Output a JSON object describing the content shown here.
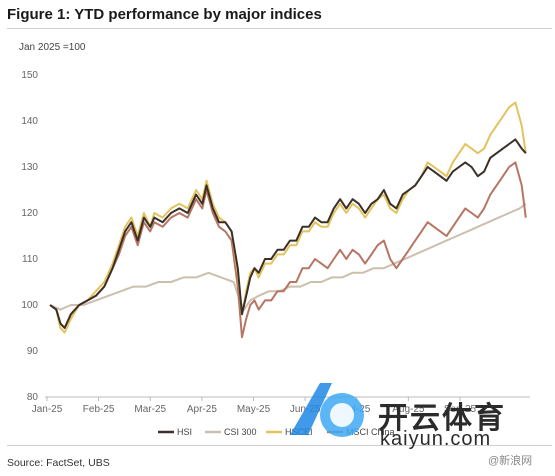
{
  "title": "Figure 1: YTD performance by major indices",
  "ylabel": "Jan 2025 =100",
  "source": "Source: FactSet, UBS",
  "watermark": {
    "brand": "开云体育",
    "domain": "kaiyun.com",
    "tag": "@新浪网"
  },
  "chart_data": {
    "type": "line",
    "x_ticks": [
      "Jan-25",
      "Feb-25",
      "Mar-25",
      "Apr-25",
      "May-25",
      "Jun-25",
      "Jul-25",
      "Aug-25",
      "Sep-25"
    ],
    "y_ticks": [
      80,
      90,
      100,
      110,
      120,
      130,
      140,
      150
    ],
    "ylim": [
      80,
      150
    ],
    "grid": false,
    "legend_position": "bottom",
    "series": [
      {
        "name": "HSI",
        "color": "#3b3028",
        "points": [
          [
            0,
            100
          ],
          [
            0.3,
            99
          ],
          [
            0.5,
            96
          ],
          [
            0.7,
            95
          ],
          [
            1,
            98
          ],
          [
            1.4,
            100
          ],
          [
            1.8,
            101
          ],
          [
            2.2,
            102
          ],
          [
            2.6,
            104
          ],
          [
            3,
            108
          ],
          [
            3.3,
            112
          ],
          [
            3.6,
            116
          ],
          [
            3.9,
            118
          ],
          [
            4.2,
            114
          ],
          [
            4.5,
            119
          ],
          [
            4.8,
            117
          ],
          [
            5,
            119
          ],
          [
            5.4,
            118
          ],
          [
            5.8,
            120
          ],
          [
            6.2,
            121
          ],
          [
            6.6,
            120
          ],
          [
            7,
            124
          ],
          [
            7.3,
            122
          ],
          [
            7.5,
            126
          ],
          [
            7.8,
            121
          ],
          [
            8.1,
            118
          ],
          [
            8.4,
            118
          ],
          [
            8.7,
            116
          ],
          [
            9,
            108
          ],
          [
            9.2,
            98
          ],
          [
            9.4,
            102
          ],
          [
            9.6,
            106
          ],
          [
            9.8,
            108
          ],
          [
            10,
            107
          ],
          [
            10.3,
            110
          ],
          [
            10.6,
            110
          ],
          [
            10.9,
            112
          ],
          [
            11.2,
            112
          ],
          [
            11.5,
            114
          ],
          [
            11.8,
            114
          ],
          [
            12.1,
            117
          ],
          [
            12.4,
            117
          ],
          [
            12.7,
            119
          ],
          [
            13,
            118
          ],
          [
            13.3,
            118
          ],
          [
            13.6,
            121
          ],
          [
            13.9,
            123
          ],
          [
            14.2,
            121
          ],
          [
            14.5,
            123
          ],
          [
            14.8,
            122
          ],
          [
            15.1,
            120
          ],
          [
            15.4,
            122
          ],
          [
            15.7,
            123
          ],
          [
            16,
            125
          ],
          [
            16.3,
            122
          ],
          [
            16.6,
            121
          ],
          [
            16.9,
            124
          ],
          [
            17.2,
            125
          ],
          [
            17.5,
            126
          ],
          [
            17.8,
            128
          ],
          [
            18.1,
            130
          ],
          [
            18.4,
            129
          ],
          [
            18.7,
            128
          ],
          [
            19,
            127
          ],
          [
            19.3,
            129
          ],
          [
            19.6,
            130
          ],
          [
            19.9,
            131
          ],
          [
            20.2,
            130
          ],
          [
            20.5,
            128
          ],
          [
            20.8,
            129
          ],
          [
            21.1,
            132
          ],
          [
            21.4,
            133
          ],
          [
            21.7,
            134
          ],
          [
            22,
            135
          ],
          [
            22.3,
            136
          ],
          [
            22.6,
            134
          ],
          [
            22.8,
            133
          ]
        ]
      },
      {
        "name": "CSI 300",
        "color": "#cdbfae",
        "points": [
          [
            0,
            100
          ],
          [
            0.5,
            99
          ],
          [
            1,
            100
          ],
          [
            1.6,
            100
          ],
          [
            2.2,
            101
          ],
          [
            2.8,
            102
          ],
          [
            3.4,
            103
          ],
          [
            4,
            104
          ],
          [
            4.6,
            104
          ],
          [
            5.2,
            105
          ],
          [
            5.8,
            105
          ],
          [
            6.4,
            106
          ],
          [
            7,
            106
          ],
          [
            7.6,
            107
          ],
          [
            8.2,
            106
          ],
          [
            8.8,
            105
          ],
          [
            9.1,
            101
          ],
          [
            9.3,
            99
          ],
          [
            9.6,
            101
          ],
          [
            10,
            102
          ],
          [
            10.5,
            103
          ],
          [
            11,
            103
          ],
          [
            11.5,
            104
          ],
          [
            12,
            104
          ],
          [
            12.5,
            105
          ],
          [
            13,
            105
          ],
          [
            13.5,
            106
          ],
          [
            14,
            106
          ],
          [
            14.5,
            107
          ],
          [
            15,
            107
          ],
          [
            15.5,
            108
          ],
          [
            16,
            108
          ],
          [
            16.5,
            109
          ],
          [
            17,
            110
          ],
          [
            17.5,
            111
          ],
          [
            18,
            112
          ],
          [
            18.5,
            113
          ],
          [
            19,
            114
          ],
          [
            19.5,
            115
          ],
          [
            20,
            116
          ],
          [
            20.5,
            117
          ],
          [
            21,
            118
          ],
          [
            21.5,
            119
          ],
          [
            22,
            120
          ],
          [
            22.5,
            121
          ],
          [
            22.8,
            122
          ]
        ]
      },
      {
        "name": "HSCEI",
        "color": "#e3c35e",
        "points": [
          [
            0,
            100
          ],
          [
            0.3,
            99
          ],
          [
            0.5,
            95
          ],
          [
            0.7,
            94
          ],
          [
            1,
            97
          ],
          [
            1.4,
            100
          ],
          [
            1.8,
            101
          ],
          [
            2.2,
            103
          ],
          [
            2.6,
            105
          ],
          [
            3,
            109
          ],
          [
            3.3,
            113
          ],
          [
            3.6,
            117
          ],
          [
            3.9,
            119
          ],
          [
            4.2,
            115
          ],
          [
            4.5,
            120
          ],
          [
            4.8,
            117
          ],
          [
            5,
            120
          ],
          [
            5.4,
            119
          ],
          [
            5.8,
            121
          ],
          [
            6.2,
            122
          ],
          [
            6.6,
            121
          ],
          [
            7,
            125
          ],
          [
            7.3,
            123
          ],
          [
            7.5,
            127
          ],
          [
            7.8,
            122
          ],
          [
            8.1,
            119
          ],
          [
            8.4,
            118
          ],
          [
            8.7,
            116
          ],
          [
            9,
            107
          ],
          [
            9.2,
            98
          ],
          [
            9.4,
            103
          ],
          [
            9.6,
            107
          ],
          [
            9.8,
            108
          ],
          [
            10,
            106
          ],
          [
            10.3,
            109
          ],
          [
            10.6,
            109
          ],
          [
            10.9,
            111
          ],
          [
            11.2,
            111
          ],
          [
            11.5,
            113
          ],
          [
            11.8,
            113
          ],
          [
            12.1,
            116
          ],
          [
            12.4,
            116
          ],
          [
            12.7,
            118
          ],
          [
            13,
            117
          ],
          [
            13.3,
            117
          ],
          [
            13.6,
            120
          ],
          [
            13.9,
            122
          ],
          [
            14.2,
            120
          ],
          [
            14.5,
            122
          ],
          [
            14.8,
            121
          ],
          [
            15.1,
            119
          ],
          [
            15.4,
            121
          ],
          [
            15.7,
            123
          ],
          [
            16,
            124
          ],
          [
            16.3,
            121
          ],
          [
            16.6,
            120
          ],
          [
            16.9,
            123
          ],
          [
            17.2,
            125
          ],
          [
            17.5,
            126
          ],
          [
            17.8,
            128
          ],
          [
            18.1,
            131
          ],
          [
            18.4,
            130
          ],
          [
            18.7,
            129
          ],
          [
            19,
            128
          ],
          [
            19.3,
            131
          ],
          [
            19.6,
            133
          ],
          [
            19.9,
            135
          ],
          [
            20.2,
            134
          ],
          [
            20.5,
            133
          ],
          [
            20.8,
            134
          ],
          [
            21.1,
            137
          ],
          [
            21.4,
            139
          ],
          [
            21.7,
            141
          ],
          [
            22,
            143
          ],
          [
            22.3,
            144
          ],
          [
            22.6,
            139
          ],
          [
            22.8,
            133
          ]
        ]
      },
      {
        "name": "MSCI China",
        "color": "#b77563",
        "points": [
          [
            0,
            100
          ],
          [
            0.3,
            99
          ],
          [
            0.5,
            96
          ],
          [
            0.7,
            95
          ],
          [
            1,
            98
          ],
          [
            1.4,
            100
          ],
          [
            1.8,
            101
          ],
          [
            2.2,
            102
          ],
          [
            2.6,
            104
          ],
          [
            3,
            108
          ],
          [
            3.3,
            111
          ],
          [
            3.6,
            115
          ],
          [
            3.9,
            117
          ],
          [
            4.2,
            113
          ],
          [
            4.5,
            118
          ],
          [
            4.8,
            116
          ],
          [
            5,
            118
          ],
          [
            5.4,
            117
          ],
          [
            5.8,
            119
          ],
          [
            6.2,
            120
          ],
          [
            6.6,
            119
          ],
          [
            7,
            123
          ],
          [
            7.3,
            121
          ],
          [
            7.5,
            125
          ],
          [
            7.8,
            120
          ],
          [
            8.1,
            117
          ],
          [
            8.4,
            116
          ],
          [
            8.7,
            114
          ],
          [
            9,
            104
          ],
          [
            9.2,
            93
          ],
          [
            9.4,
            97
          ],
          [
            9.6,
            100
          ],
          [
            9.8,
            101
          ],
          [
            10,
            99
          ],
          [
            10.3,
            101
          ],
          [
            10.6,
            101
          ],
          [
            10.9,
            103
          ],
          [
            11.2,
            103
          ],
          [
            11.5,
            105
          ],
          [
            11.8,
            105
          ],
          [
            12.1,
            108
          ],
          [
            12.4,
            108
          ],
          [
            12.7,
            110
          ],
          [
            13,
            109
          ],
          [
            13.3,
            108
          ],
          [
            13.6,
            110
          ],
          [
            13.9,
            112
          ],
          [
            14.2,
            110
          ],
          [
            14.5,
            112
          ],
          [
            14.8,
            111
          ],
          [
            15.1,
            109
          ],
          [
            15.4,
            111
          ],
          [
            15.7,
            113
          ],
          [
            16,
            114
          ],
          [
            16.3,
            110
          ],
          [
            16.6,
            108
          ],
          [
            16.9,
            110
          ],
          [
            17.2,
            112
          ],
          [
            17.5,
            114
          ],
          [
            17.8,
            116
          ],
          [
            18.1,
            118
          ],
          [
            18.4,
            117
          ],
          [
            18.7,
            116
          ],
          [
            19,
            115
          ],
          [
            19.3,
            117
          ],
          [
            19.6,
            119
          ],
          [
            19.9,
            121
          ],
          [
            20.2,
            120
          ],
          [
            20.5,
            119
          ],
          [
            20.8,
            121
          ],
          [
            21.1,
            124
          ],
          [
            21.4,
            126
          ],
          [
            21.7,
            128
          ],
          [
            22,
            130
          ],
          [
            22.3,
            131
          ],
          [
            22.6,
            126
          ],
          [
            22.8,
            119
          ]
        ]
      }
    ]
  }
}
